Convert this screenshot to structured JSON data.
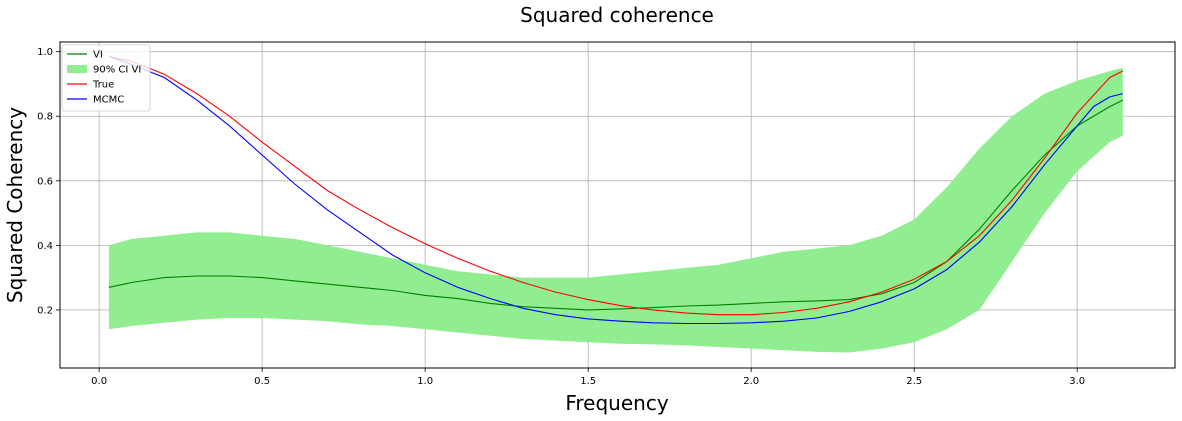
{
  "chart_data": {
    "type": "line",
    "title": "Squared coherence",
    "xlabel": "Frequency",
    "ylabel": "Squared Coherency",
    "xlim": [
      -0.12,
      3.3
    ],
    "ylim": [
      0.02,
      1.03
    ],
    "xticks": [
      0.0,
      0.5,
      1.0,
      1.5,
      2.0,
      2.5,
      3.0
    ],
    "xtick_labels": [
      "0.0",
      "0.5",
      "1.0",
      "1.5",
      "2.0",
      "2.5",
      "3.0"
    ],
    "yticks": [
      0.2,
      0.4,
      0.6,
      0.8,
      1.0
    ],
    "ytick_labels": [
      "0.2",
      "0.4",
      "0.6",
      "0.8",
      "1.0"
    ],
    "grid": true,
    "legend_position": "top-left",
    "band": {
      "name": "90% CI VI",
      "color": "#90ee90",
      "x": [
        0.03,
        0.1,
        0.2,
        0.3,
        0.4,
        0.5,
        0.6,
        0.7,
        0.8,
        0.9,
        1.0,
        1.1,
        1.2,
        1.3,
        1.4,
        1.5,
        1.6,
        1.7,
        1.8,
        1.9,
        2.0,
        2.1,
        2.2,
        2.3,
        2.4,
        2.5,
        2.6,
        2.7,
        2.8,
        2.9,
        3.0,
        3.1,
        3.14
      ],
      "lower": [
        0.14,
        0.15,
        0.16,
        0.17,
        0.175,
        0.175,
        0.17,
        0.165,
        0.155,
        0.15,
        0.14,
        0.13,
        0.12,
        0.11,
        0.105,
        0.1,
        0.095,
        0.093,
        0.09,
        0.085,
        0.08,
        0.075,
        0.07,
        0.068,
        0.08,
        0.1,
        0.14,
        0.2,
        0.35,
        0.5,
        0.63,
        0.72,
        0.74
      ],
      "upper": [
        0.4,
        0.42,
        0.43,
        0.44,
        0.44,
        0.43,
        0.42,
        0.4,
        0.38,
        0.36,
        0.34,
        0.32,
        0.31,
        0.3,
        0.3,
        0.3,
        0.31,
        0.32,
        0.33,
        0.34,
        0.36,
        0.38,
        0.39,
        0.4,
        0.43,
        0.48,
        0.58,
        0.7,
        0.8,
        0.87,
        0.91,
        0.94,
        0.95
      ]
    },
    "series": [
      {
        "name": "VI",
        "color": "#008000",
        "x": [
          0.03,
          0.1,
          0.2,
          0.3,
          0.4,
          0.5,
          0.6,
          0.7,
          0.8,
          0.9,
          1.0,
          1.1,
          1.2,
          1.3,
          1.4,
          1.5,
          1.6,
          1.7,
          1.8,
          1.9,
          2.0,
          2.1,
          2.2,
          2.3,
          2.4,
          2.5,
          2.6,
          2.7,
          2.8,
          2.9,
          3.0,
          3.1,
          3.14
        ],
        "values": [
          0.27,
          0.285,
          0.3,
          0.305,
          0.305,
          0.3,
          0.29,
          0.28,
          0.27,
          0.26,
          0.245,
          0.235,
          0.22,
          0.21,
          0.205,
          0.2,
          0.203,
          0.207,
          0.212,
          0.215,
          0.22,
          0.225,
          0.228,
          0.232,
          0.25,
          0.285,
          0.35,
          0.45,
          0.57,
          0.68,
          0.77,
          0.83,
          0.85
        ]
      },
      {
        "name": "True",
        "color": "#ff0000",
        "x": [
          0.03,
          0.1,
          0.2,
          0.3,
          0.4,
          0.5,
          0.6,
          0.7,
          0.8,
          0.9,
          1.0,
          1.1,
          1.2,
          1.3,
          1.4,
          1.5,
          1.6,
          1.7,
          1.8,
          1.9,
          2.0,
          2.1,
          2.2,
          2.3,
          2.4,
          2.5,
          2.6,
          2.7,
          2.8,
          2.9,
          3.0,
          3.1,
          3.14
        ],
        "values": [
          0.985,
          0.97,
          0.93,
          0.87,
          0.8,
          0.72,
          0.645,
          0.57,
          0.51,
          0.455,
          0.405,
          0.36,
          0.32,
          0.285,
          0.255,
          0.232,
          0.213,
          0.2,
          0.19,
          0.185,
          0.185,
          0.192,
          0.205,
          0.225,
          0.255,
          0.295,
          0.35,
          0.43,
          0.54,
          0.67,
          0.81,
          0.92,
          0.94
        ]
      },
      {
        "name": "MCMC",
        "color": "#0000ff",
        "x": [
          0.03,
          0.1,
          0.2,
          0.3,
          0.4,
          0.5,
          0.6,
          0.7,
          0.8,
          0.9,
          1.0,
          1.1,
          1.2,
          1.3,
          1.4,
          1.5,
          1.6,
          1.7,
          1.8,
          1.9,
          2.0,
          2.1,
          2.2,
          2.3,
          2.4,
          2.5,
          2.6,
          2.7,
          2.8,
          2.9,
          3.0,
          3.05,
          3.1,
          3.14
        ],
        "values": [
          0.985,
          0.96,
          0.92,
          0.85,
          0.77,
          0.68,
          0.59,
          0.51,
          0.44,
          0.37,
          0.315,
          0.27,
          0.235,
          0.205,
          0.185,
          0.172,
          0.165,
          0.16,
          0.158,
          0.158,
          0.16,
          0.165,
          0.175,
          0.195,
          0.225,
          0.265,
          0.325,
          0.41,
          0.52,
          0.65,
          0.77,
          0.83,
          0.86,
          0.87
        ]
      }
    ]
  }
}
